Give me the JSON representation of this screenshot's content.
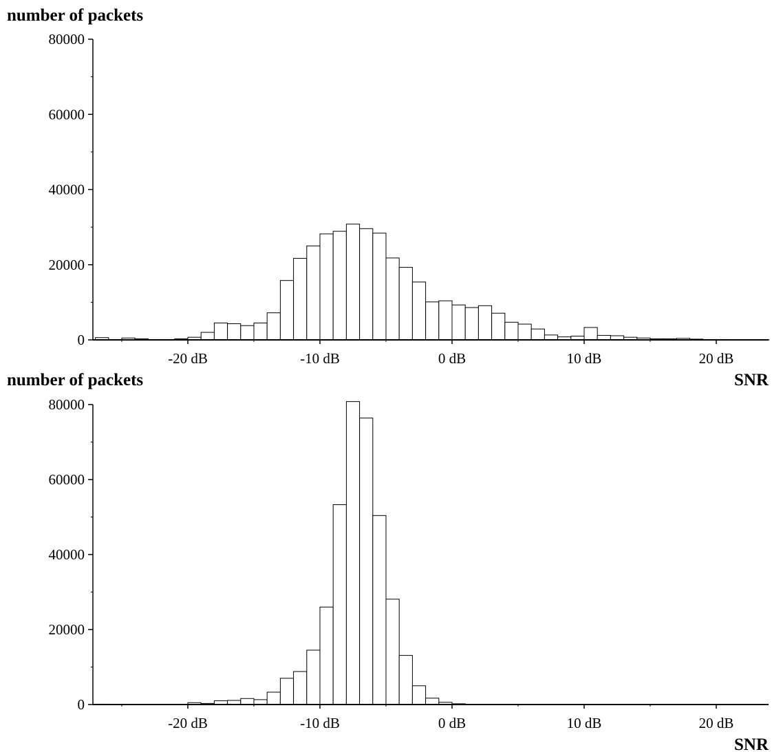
{
  "colors": {
    "bar_fill": "#ffffff",
    "stroke": "#000000",
    "background": "#ffffff"
  },
  "chart_data": [
    {
      "type": "bar",
      "ylabel": "number of packets",
      "xlabel": "SNR",
      "ylim": [
        0,
        80000
      ],
      "xlim": [
        -27,
        24
      ],
      "bin_width": 1,
      "grid": false,
      "x_ticks": [
        {
          "value": -20,
          "label": "-20 dB"
        },
        {
          "value": -10,
          "label": "-10 dB"
        },
        {
          "value": 0,
          "label": "0 dB"
        },
        {
          "value": 10,
          "label": "10 dB"
        },
        {
          "value": 20,
          "label": "20 dB"
        }
      ],
      "y_ticks": [
        {
          "value": 0,
          "label": "0"
        },
        {
          "value": 20000,
          "label": "20000"
        },
        {
          "value": 40000,
          "label": "40000"
        },
        {
          "value": 60000,
          "label": "60000"
        },
        {
          "value": 80000,
          "label": "80000"
        }
      ],
      "bin_starts": [
        -27,
        -26,
        -25,
        -24,
        -23,
        -22,
        -21,
        -20,
        -19,
        -18,
        -17,
        -16,
        -15,
        -14,
        -13,
        -12,
        -11,
        -10,
        -9,
        -8,
        -7,
        -6,
        -5,
        -4,
        -3,
        -2,
        -1,
        0,
        1,
        2,
        3,
        4,
        5,
        6,
        7,
        8,
        9,
        10,
        11,
        12,
        13,
        14,
        15,
        16,
        17,
        18,
        19,
        20,
        21,
        22,
        23
      ],
      "values": [
        600,
        100,
        500,
        300,
        100,
        100,
        300,
        700,
        2000,
        4500,
        4300,
        3800,
        4500,
        7200,
        15800,
        21700,
        25000,
        28200,
        28900,
        30800,
        29600,
        28400,
        21800,
        19300,
        15400,
        10100,
        10400,
        9300,
        8600,
        9100,
        7100,
        4700,
        4200,
        2900,
        1300,
        800,
        1000,
        3300,
        1200,
        1100,
        700,
        500,
        300,
        300,
        400,
        200,
        100,
        100,
        50,
        50,
        50
      ]
    },
    {
      "type": "bar",
      "ylabel": "number of packets",
      "xlabel": "SNR",
      "ylim": [
        0,
        80000
      ],
      "xlim": [
        -27,
        24
      ],
      "bin_width": 1,
      "grid": false,
      "x_ticks": [
        {
          "value": -20,
          "label": "-20 dB"
        },
        {
          "value": -10,
          "label": "-10 dB"
        },
        {
          "value": 0,
          "label": "0 dB"
        },
        {
          "value": 10,
          "label": "10 dB"
        },
        {
          "value": 20,
          "label": "20 dB"
        }
      ],
      "y_ticks": [
        {
          "value": 0,
          "label": "0"
        },
        {
          "value": 20000,
          "label": "20000"
        },
        {
          "value": 40000,
          "label": "40000"
        },
        {
          "value": 60000,
          "label": "60000"
        },
        {
          "value": 80000,
          "label": "80000"
        }
      ],
      "bin_starts": [
        -27,
        -26,
        -25,
        -24,
        -23,
        -22,
        -21,
        -20,
        -19,
        -18,
        -17,
        -16,
        -15,
        -14,
        -13,
        -12,
        -11,
        -10,
        -9,
        -8,
        -7,
        -6,
        -5,
        -4,
        -3,
        -2,
        -1,
        0,
        1,
        2,
        3,
        4,
        5,
        6,
        7,
        8,
        9,
        10,
        11,
        12,
        13,
        14,
        15,
        16,
        17,
        18,
        19,
        20,
        21,
        22,
        23
      ],
      "values": [
        100,
        0,
        0,
        0,
        0,
        0,
        0,
        500,
        300,
        1000,
        1100,
        1600,
        1300,
        3300,
        7000,
        8800,
        14500,
        26000,
        53300,
        80800,
        76400,
        50400,
        28100,
        13100,
        5000,
        1700,
        600,
        200,
        0,
        0,
        0,
        0,
        0,
        0,
        0,
        0,
        0,
        0,
        0,
        0,
        0,
        0,
        0,
        0,
        0,
        0,
        0,
        0,
        0,
        0,
        0
      ]
    }
  ]
}
